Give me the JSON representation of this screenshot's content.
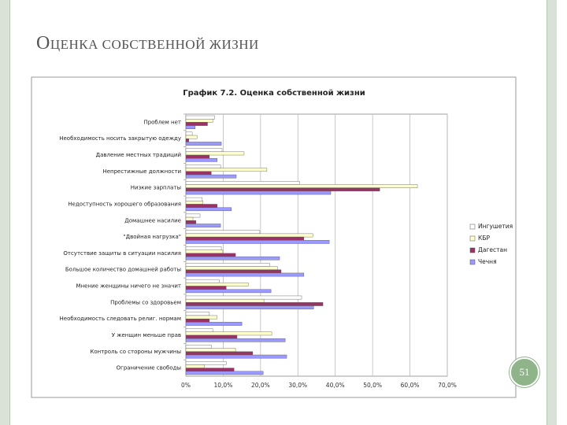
{
  "slide": {
    "title": "ОЦЕНКА СОБСТВЕННОЙ ЖИЗНИ",
    "page_number": "51"
  },
  "chart_data": {
    "type": "hbar",
    "title": "График 7.2. Оценка собственной жизни",
    "categories": [
      "Проблем нет",
      "Необходимость носить закрытую одежду",
      "Давление местных традиций",
      "Непрестижные должности",
      "Низкие зарплаты",
      "Недоступность хорошего образования",
      "Домашнее насилие",
      "\"Двойная нагрузка\"",
      "Отсутствие защиты в ситуации насилия",
      "Большое количество домашней работы",
      "Мнение женщины ничего не значит",
      "Проблемы со здоровьем",
      "Необходимость следовать религ. нормам",
      "У женщин меньше прав",
      "Контроль со стороны мужчины",
      "Ограничение свободы"
    ],
    "series": [
      {
        "name": "Ингушетия",
        "color": "#ffffff",
        "values": [
          7.7,
          1.7,
          9.7,
          9.3,
          30.4,
          4.4,
          3.8,
          19.8,
          9.5,
          22.4,
          8.9,
          31.0,
          6.3,
          7.2,
          6.8,
          10.8
        ]
      },
      {
        "name": "КБР",
        "color": "#ffffcc",
        "values": [
          7.2,
          3.0,
          15.6,
          21.7,
          62.0,
          4.6,
          1.9,
          34.0,
          9.9,
          24.5,
          16.7,
          20.9,
          8.4,
          23.0,
          13.3,
          4.9
        ]
      },
      {
        "name": "Дагестан",
        "color": "#993366",
        "values": [
          5.8,
          0.8,
          6.3,
          6.8,
          51.9,
          8.4,
          2.7,
          31.6,
          13.3,
          25.5,
          10.8,
          36.7,
          6.3,
          13.7,
          17.9,
          12.9
        ]
      },
      {
        "name": "Чечня",
        "color": "#9999ff",
        "values": [
          2.5,
          9.5,
          8.4,
          13.5,
          38.8,
          12.2,
          9.3,
          38.4,
          25.1,
          31.6,
          22.8,
          34.2,
          15.0,
          26.6,
          27.0,
          20.7
        ]
      }
    ],
    "xlim": [
      0,
      70
    ],
    "xticks": [
      {
        "value": 0,
        "label": "0%"
      },
      {
        "value": 10,
        "label": "10,0%"
      },
      {
        "value": 20,
        "label": "20,0%"
      },
      {
        "value": 30,
        "label": "30,0%"
      },
      {
        "value": 40,
        "label": "40,0%"
      },
      {
        "value": 50,
        "label": "50,0%"
      },
      {
        "value": 60,
        "label": "60,0%"
      },
      {
        "value": 70,
        "label": "70,0%"
      }
    ],
    "grid": true,
    "legend": "right"
  }
}
